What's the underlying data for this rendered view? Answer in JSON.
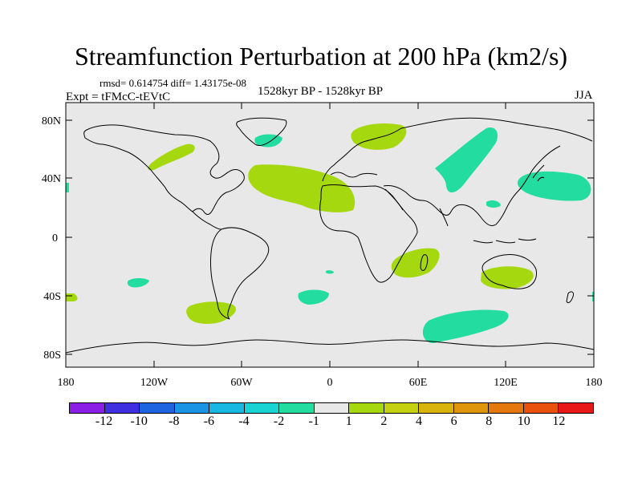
{
  "title": "Streamfunction Perturbation at 200 hPa (km2/s)",
  "stats": "rmsd= 0.614754  diff= 1.43175e-08",
  "experiment": "Expt = tFMcC-tEVtC",
  "period": "1528kyr BP - 1528kyr BP",
  "season": "JJA",
  "map": {
    "background_color": "#e8e8e8",
    "lat_ticks": [
      "80N",
      "40N",
      "0",
      "40S",
      "80S"
    ],
    "lon_ticks": [
      "180",
      "120W",
      "60W",
      "0",
      "60E",
      "120E",
      "180"
    ],
    "anomaly_regions": [
      {
        "name": "north-atlantic-subtropical-positive",
        "sign": "positive",
        "level": "1 to 2"
      },
      {
        "name": "north-america-positive",
        "sign": "positive",
        "level": "1 to 2"
      },
      {
        "name": "northern-europe-positive",
        "sign": "positive",
        "level": "1 to 2"
      },
      {
        "name": "southern-africa-positive",
        "sign": "positive",
        "level": "1 to 2"
      },
      {
        "name": "australia-positive",
        "sign": "positive",
        "level": "1 to 2"
      },
      {
        "name": "south-america-tip-positive",
        "sign": "positive",
        "level": "1 to 2"
      },
      {
        "name": "southern-indian-ocean-negative",
        "sign": "negative",
        "level": "-2 to -1"
      },
      {
        "name": "central-asia-negative",
        "sign": "negative",
        "level": "-2 to -1"
      },
      {
        "name": "north-pacific-japan-negative",
        "sign": "negative",
        "level": "-2 to -1"
      },
      {
        "name": "greenland-negative",
        "sign": "negative",
        "level": "-2 to -1"
      },
      {
        "name": "south-atlantic-negative",
        "sign": "negative",
        "level": "-2 to -1"
      },
      {
        "name": "south-pacific-negative",
        "sign": "negative",
        "level": "-2 to -1"
      }
    ]
  },
  "colorbar": {
    "colors": [
      "#8c1fe6",
      "#3e2fe0",
      "#1e64e0",
      "#1c94e6",
      "#18b8e2",
      "#19d4d2",
      "#22dca0",
      "#e8e8e8",
      "#a6d810",
      "#c4d010",
      "#d8b40c",
      "#e0960c",
      "#e4780c",
      "#e8520c",
      "#e81818"
    ],
    "labels": [
      "-12",
      "-10",
      "-8",
      "-6",
      "-4",
      "-2",
      "-1",
      "1",
      "2",
      "4",
      "6",
      "8",
      "10",
      "12"
    ]
  }
}
